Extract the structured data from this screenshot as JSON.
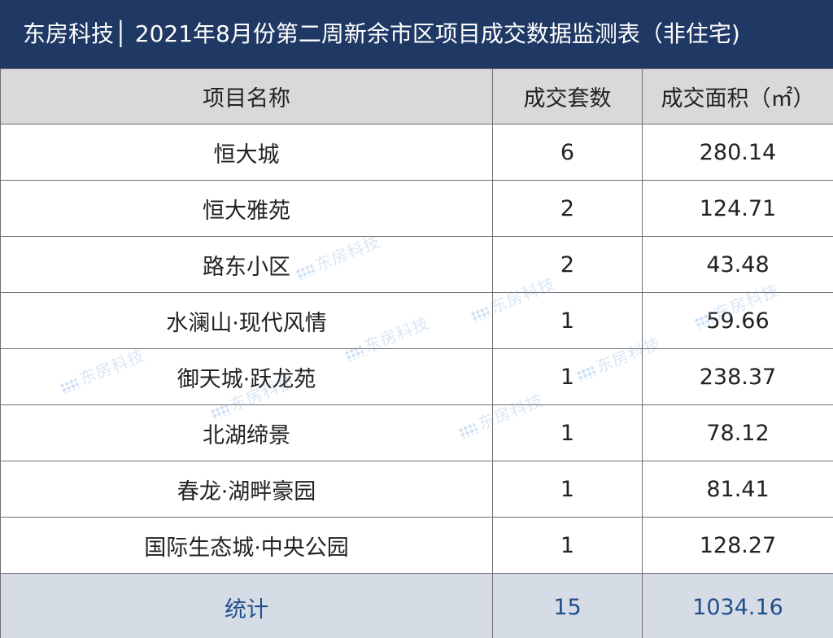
{
  "title": "东房科技│ 2021年8月份第二周新余市区项目成交数据监测表（非住宅)",
  "table": {
    "headers": [
      "项目名称",
      "成交套数",
      "成交面积（㎡）"
    ],
    "rows": [
      {
        "name": "恒大城",
        "count": "6",
        "area": "280.14"
      },
      {
        "name": "恒大雅苑",
        "count": "2",
        "area": "124.71"
      },
      {
        "name": "路东小区",
        "count": "2",
        "area": "43.48"
      },
      {
        "name": "水澜山·现代风情",
        "count": "1",
        "area": "59.66"
      },
      {
        "name": "御天城·跃龙苑",
        "count": "1",
        "area": "238.37"
      },
      {
        "name": "北湖缔景",
        "count": "1",
        "area": "78.12"
      },
      {
        "name": "春龙·湖畔豪园",
        "count": "1",
        "area": "81.41"
      },
      {
        "name": "国际生态城·中央公园",
        "count": "1",
        "area": "128.27"
      }
    ],
    "total": {
      "label": "统计",
      "count": "15",
      "area": "1034.16"
    }
  },
  "watermark": "东房科技",
  "colors": {
    "title_bg": "#1f3864",
    "header_bg": "#d9d9d9",
    "total_bg": "#d6dce5",
    "total_text": "#1f4e8c"
  }
}
